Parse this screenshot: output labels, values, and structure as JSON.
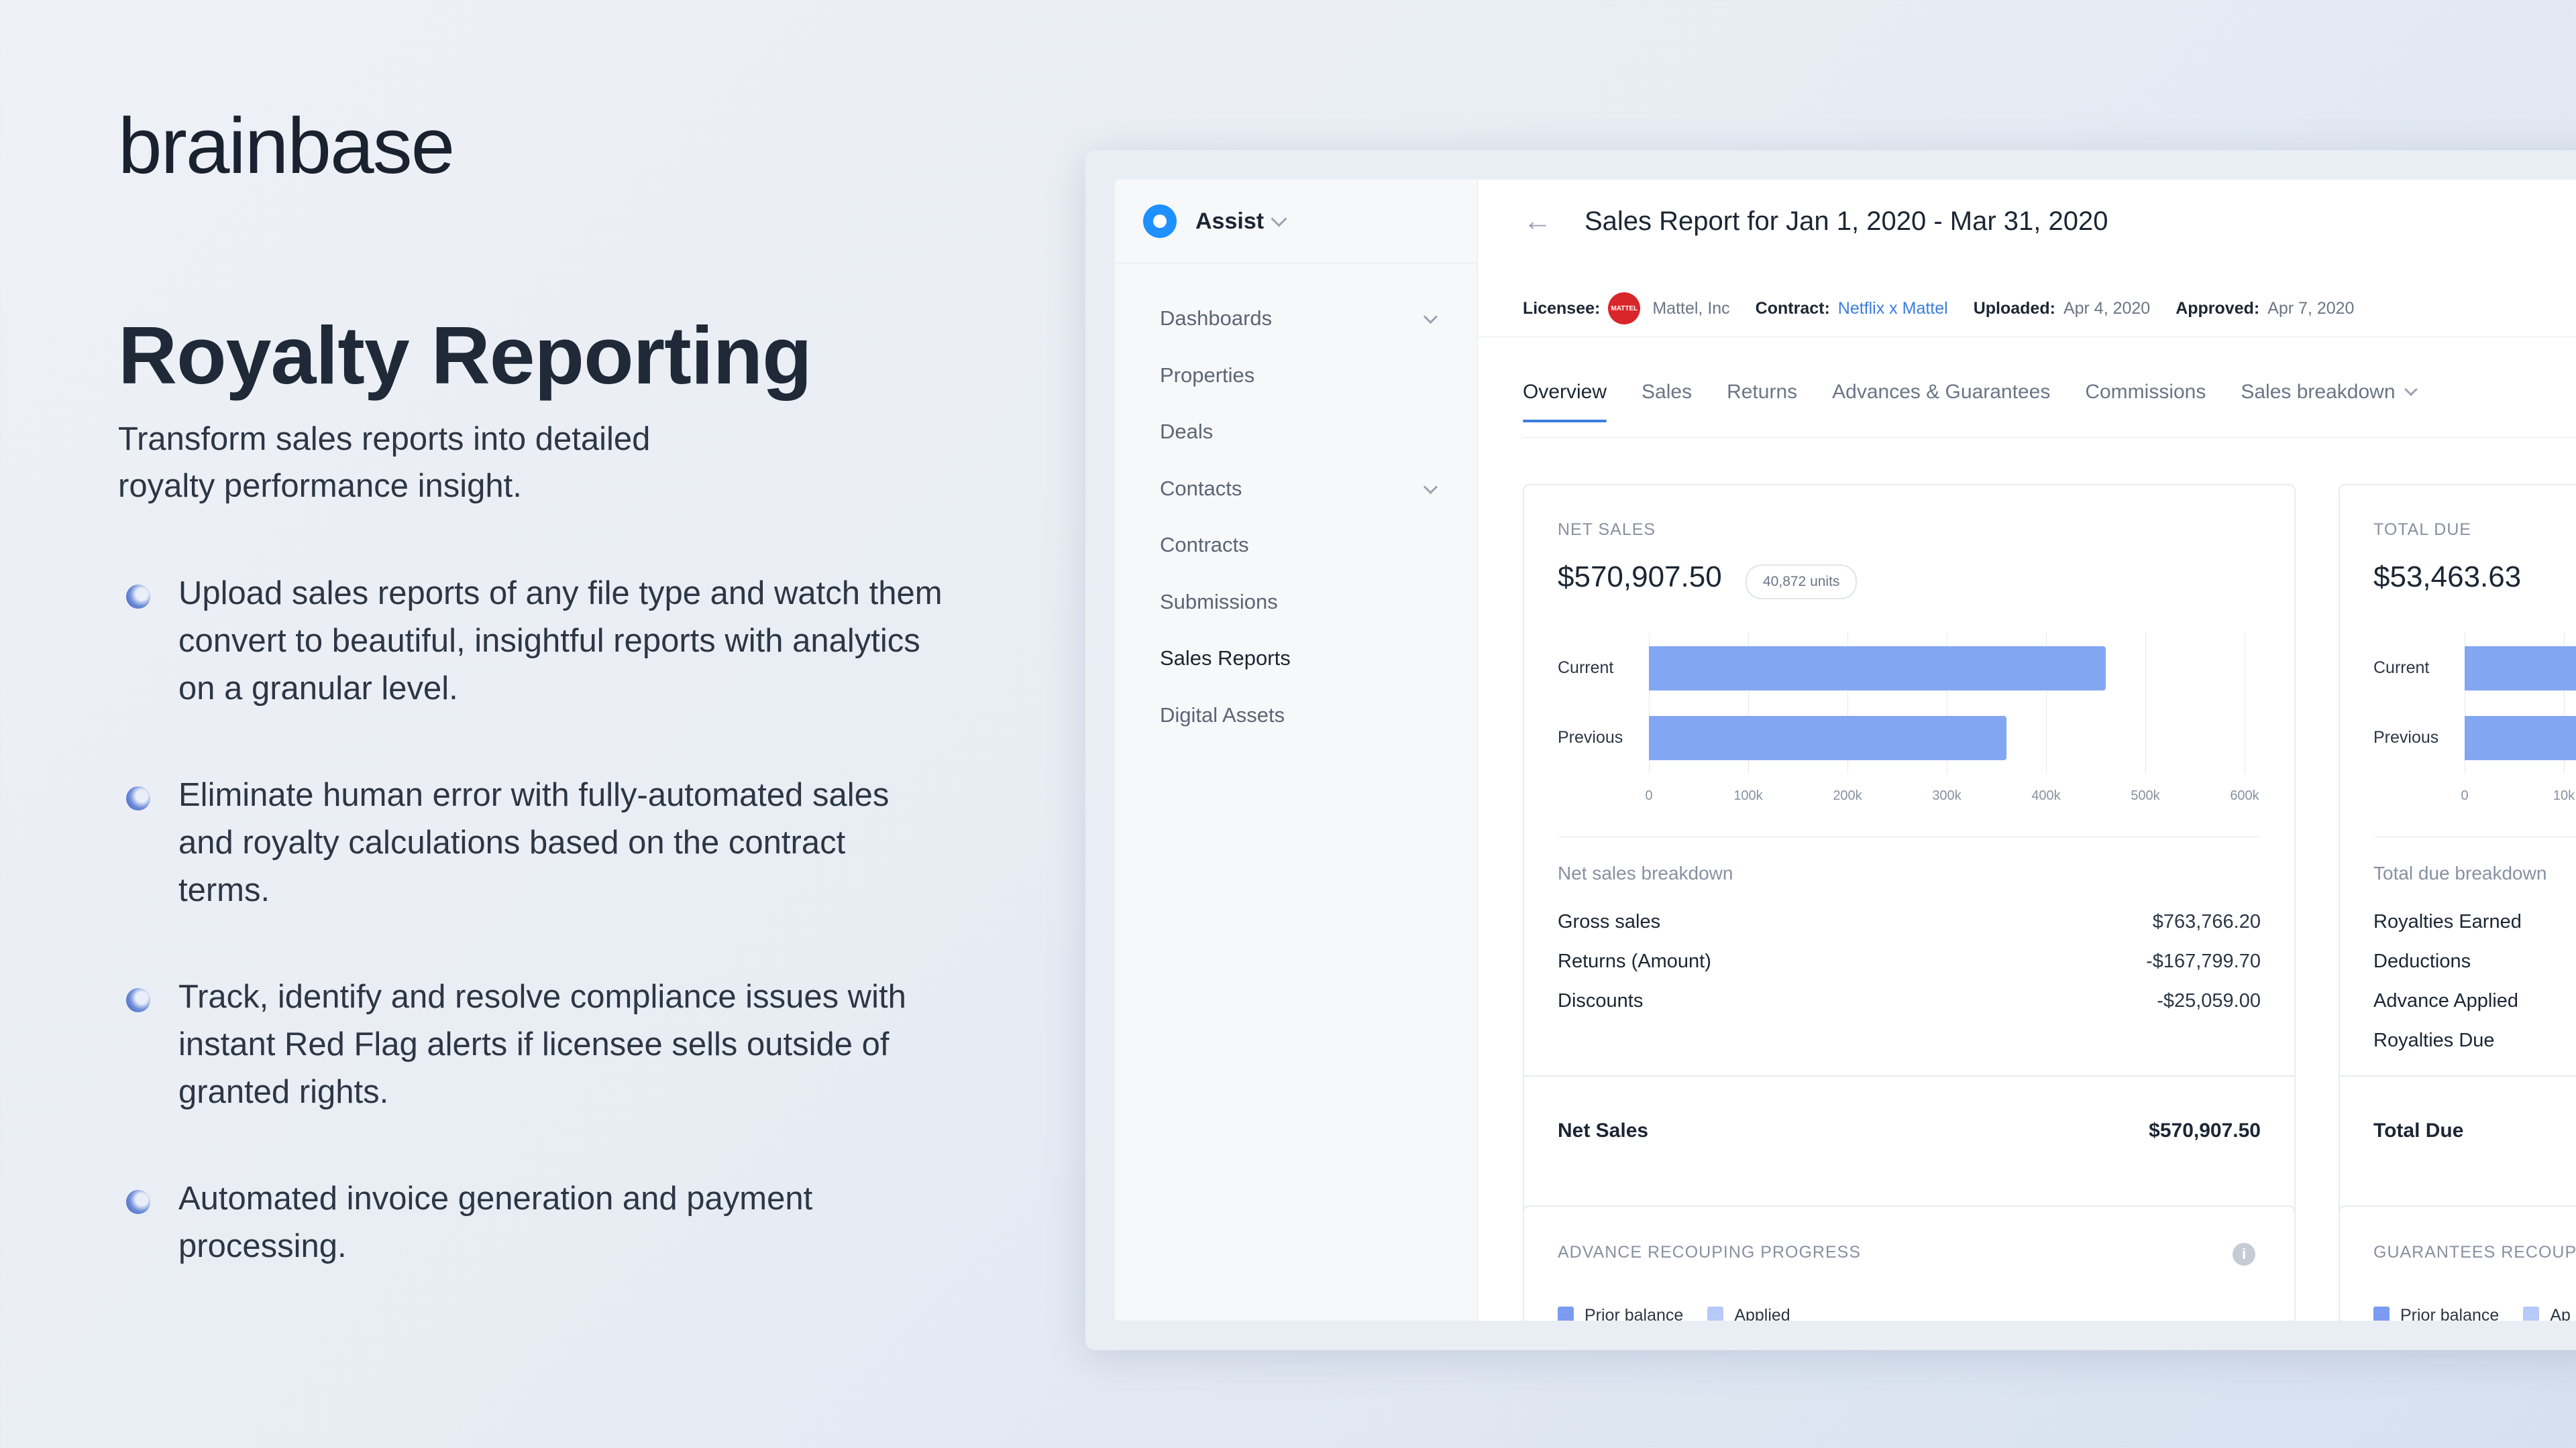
{
  "brand": {
    "logo": "brainbase"
  },
  "hero": {
    "title": "Royalty Reporting",
    "subtitle_line1": "Transform sales reports into detailed",
    "subtitle_line2": "royalty performance insight.",
    "features": [
      "Upload sales reports of any file type and watch them convert to beautiful, insightful reports with analytics on a granular level.",
      "Eliminate human error with fully-automated sales and royalty calculations based on the contract terms.",
      "Track, identify and resolve compliance issues with instant Red Flag alerts if licensee sells outside of granted rights.",
      "Automated invoice generation and payment processing."
    ]
  },
  "app": {
    "workspace": "Assist",
    "nav": [
      {
        "label": "Dashboards",
        "expandable": true
      },
      {
        "label": "Properties",
        "expandable": false
      },
      {
        "label": "Deals",
        "expandable": false
      },
      {
        "label": "Contacts",
        "expandable": true
      },
      {
        "label": "Contracts",
        "expandable": false
      },
      {
        "label": "Submissions",
        "expandable": false
      },
      {
        "label": "Sales Reports",
        "expandable": false,
        "active": true
      },
      {
        "label": "Digital Assets",
        "expandable": false
      }
    ],
    "report_title": "Sales Report for Jan 1, 2020 - Mar 31, 2020",
    "meta": {
      "licensee_label": "Licensee:",
      "licensee_badge": "MATTEL",
      "licensee": "Mattel, Inc",
      "contract_label": "Contract:",
      "contract": "Netflix x Mattel",
      "uploaded_label": "Uploaded:",
      "uploaded": "Apr 4, 2020",
      "approved_label": "Approved:",
      "approved": "Apr 7, 2020"
    },
    "tabs": [
      "Overview",
      "Sales",
      "Returns",
      "Advances & Guarantees",
      "Commissions",
      "Sales breakdown"
    ],
    "net_sales_card": {
      "label": "NET SALES",
      "value": "$570,907.50",
      "units": "40,872 units",
      "breakdown_title": "Net sales breakdown",
      "rows": [
        {
          "label": "Gross sales",
          "amount": "$763,766.20"
        },
        {
          "label": "Returns (Amount)",
          "amount": "-$167,799.70"
        },
        {
          "label": "Discounts",
          "amount": "-$25,059.00"
        }
      ],
      "footer_label": "Net Sales",
      "footer_amount": "$570,907.50"
    },
    "total_due_card": {
      "label": "TOTAL DUE",
      "value": "$53,463.63",
      "breakdown_title": "Total due breakdown",
      "rows": [
        "Royalties Earned",
        "Deductions",
        "Advance Applied",
        "Royalties Due"
      ],
      "footer_label": "Total Due"
    },
    "advance_card": {
      "label": "ADVANCE RECOUPING PROGRESS",
      "legend": [
        "Prior balance",
        "Applied"
      ]
    },
    "guarantees_card": {
      "label": "GUARANTEES RECOUPIN",
      "legend": [
        "Prior balance",
        "Ap"
      ]
    },
    "colors": {
      "accent": "#3b7ddd",
      "bar": "#83a6f2",
      "prior": "#7b9cf0",
      "applied": "#b7c9f6"
    }
  },
  "chart_data": [
    {
      "type": "bar",
      "orientation": "horizontal",
      "categories": [
        "Current",
        "Previous"
      ],
      "values": [
        460000,
        360000
      ],
      "xlim": [
        0,
        600000
      ],
      "ticks": [
        "0",
        "100k",
        "200k",
        "300k",
        "400k",
        "500k",
        "600k"
      ],
      "grid": true
    },
    {
      "type": "bar",
      "orientation": "horizontal",
      "categories": [
        "Current",
        "Previous"
      ],
      "ticks": [
        "0",
        "10k"
      ],
      "grid": true
    }
  ]
}
